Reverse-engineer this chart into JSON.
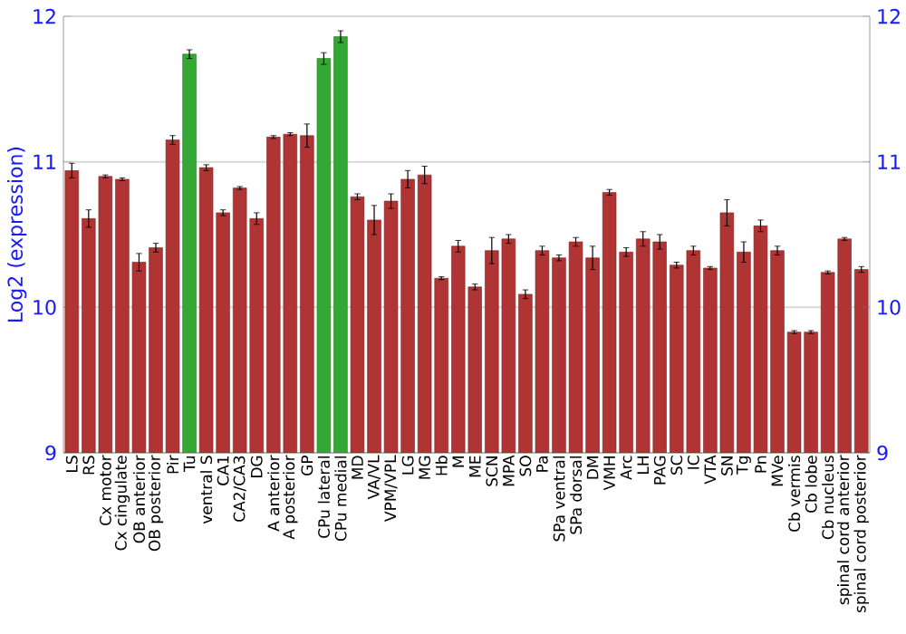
{
  "chart_data": {
    "type": "bar",
    "ylabel": "Log2 (expression)",
    "categories": [
      "LS",
      "RS",
      "Cx motor",
      "Cx cingulate",
      "OB anterior",
      "OB posterior",
      "Pir",
      "Tu",
      "ventral S",
      "CA1",
      "CA2/CA3",
      "DG",
      "A anterior",
      "A posterior",
      "GP",
      "CPu lateral",
      "CPu medial",
      "MD",
      "VA/VL",
      "VPM/VPL",
      "LG",
      "MG",
      "Hb",
      "M",
      "ME",
      "SCN",
      "MPA",
      "SO",
      "Pa",
      "SPa ventral",
      "SPa dorsal",
      "DM",
      "VMH",
      "Arc",
      "LH",
      "PAG",
      "SC",
      "IC",
      "VTA",
      "SN",
      "Tg",
      "Pn",
      "MVe",
      "Cb vermis",
      "Cb lobe",
      "Cb nucleus",
      "spinal cord anterior",
      "spinal cord posterior"
    ],
    "values": [
      10.94,
      10.61,
      10.9,
      10.88,
      10.31,
      10.41,
      11.15,
      11.74,
      10.96,
      10.65,
      10.82,
      10.61,
      11.17,
      11.19,
      11.18,
      11.71,
      11.86,
      10.76,
      10.6,
      10.73,
      10.88,
      10.91,
      10.2,
      10.42,
      10.14,
      10.39,
      10.47,
      10.09,
      10.39,
      10.34,
      10.45,
      10.34,
      10.79,
      10.38,
      10.47,
      10.45,
      10.29,
      10.39,
      10.27,
      10.65,
      10.38,
      10.56,
      10.39,
      9.83,
      9.83,
      10.24,
      10.47,
      10.26
    ],
    "errors": [
      0.05,
      0.06,
      0.01,
      0.01,
      0.06,
      0.03,
      0.03,
      0.03,
      0.02,
      0.02,
      0.01,
      0.04,
      0.01,
      0.01,
      0.08,
      0.04,
      0.04,
      0.02,
      0.1,
      0.05,
      0.06,
      0.06,
      0.01,
      0.04,
      0.02,
      0.09,
      0.03,
      0.03,
      0.03,
      0.02,
      0.03,
      0.08,
      0.02,
      0.03,
      0.05,
      0.05,
      0.02,
      0.03,
      0.01,
      0.09,
      0.07,
      0.04,
      0.03,
      0.01,
      0.01,
      0.01,
      0.01,
      0.02
    ],
    "colors": [
      "#b03434",
      "#b03434",
      "#b03434",
      "#b03434",
      "#b03434",
      "#b03434",
      "#b03434",
      "#34a834",
      "#b03434",
      "#b03434",
      "#b03434",
      "#b03434",
      "#b03434",
      "#b03434",
      "#b03434",
      "#34a834",
      "#34a834",
      "#b03434",
      "#b03434",
      "#b03434",
      "#b03434",
      "#b03434",
      "#b03434",
      "#b03434",
      "#b03434",
      "#b03434",
      "#b03434",
      "#b03434",
      "#b03434",
      "#b03434",
      "#b03434",
      "#b03434",
      "#b03434",
      "#b03434",
      "#b03434",
      "#b03434",
      "#b03434",
      "#b03434",
      "#b03434",
      "#b03434",
      "#b03434",
      "#b03434",
      "#b03434",
      "#b03434",
      "#b03434",
      "#b03434",
      "#b03434",
      "#b03434"
    ],
    "ylim": [
      9,
      12
    ],
    "yticks": [
      9,
      10,
      11,
      12
    ],
    "y2lim": [
      9,
      12
    ],
    "y2ticks": [
      9,
      10,
      11,
      12
    ],
    "grid": "y"
  }
}
